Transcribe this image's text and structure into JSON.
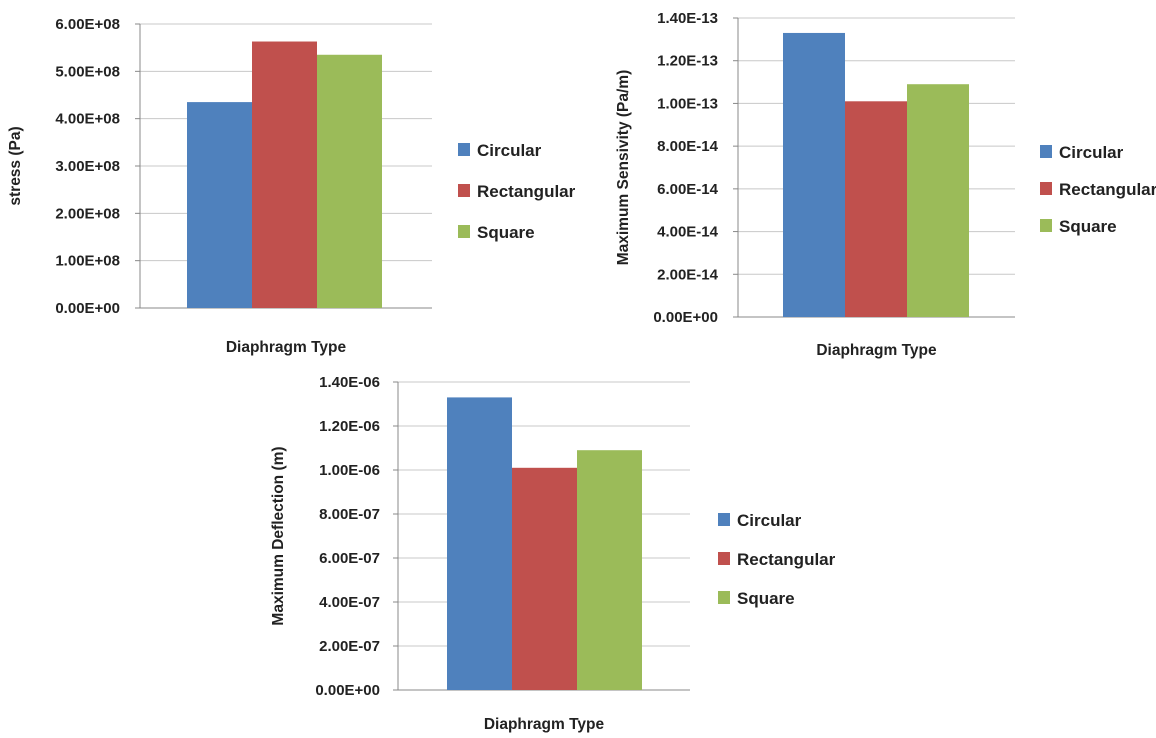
{
  "series_colors": {
    "Circular": "#4f81bd",
    "Rectangular": "#c0504d",
    "Square": "#9bbb59"
  },
  "chart_data": [
    {
      "type": "bar",
      "xlabel": "Diaphragm Type",
      "ylabel": "stress (Pa)",
      "ylim": [
        0,
        600000000
      ],
      "yticks": [
        "0.00E+00",
        "1.00E+08",
        "2.00E+08",
        "3.00E+08",
        "4.00E+08",
        "5.00E+08",
        "6.00E+08"
      ],
      "grid": true,
      "legend_position": "right",
      "series": [
        {
          "name": "Circular",
          "values": [
            435000000
          ]
        },
        {
          "name": "Rectangular",
          "values": [
            563000000
          ]
        },
        {
          "name": "Square",
          "values": [
            535000000
          ]
        }
      ]
    },
    {
      "type": "bar",
      "xlabel": "Diaphragm Type",
      "ylabel": "Maximum Sensivity (Pa/m)",
      "ylim": [
        0,
        1.4e-13
      ],
      "yticks": [
        "0.00E+00",
        "2.00E-14",
        "4.00E-14",
        "6.00E-14",
        "8.00E-14",
        "1.00E-13",
        "1.20E-13",
        "1.40E-13"
      ],
      "grid": true,
      "legend_position": "right",
      "series": [
        {
          "name": "Circular",
          "values": [
            1.33e-13
          ]
        },
        {
          "name": "Rectangular",
          "values": [
            1.01e-13
          ]
        },
        {
          "name": "Square",
          "values": [
            1.09e-13
          ]
        }
      ]
    },
    {
      "type": "bar",
      "xlabel": "Diaphragm Type",
      "ylabel": "Maximum Deflection (m)",
      "ylim": [
        0,
        1.4e-06
      ],
      "yticks": [
        "0.00E+00",
        "2.00E-07",
        "4.00E-07",
        "6.00E-07",
        "8.00E-07",
        "1.00E-06",
        "1.20E-06",
        "1.40E-06"
      ],
      "grid": true,
      "legend_position": "right",
      "series": [
        {
          "name": "Circular",
          "values": [
            1.33e-06
          ]
        },
        {
          "name": "Rectangular",
          "values": [
            1.01e-06
          ]
        },
        {
          "name": "Square",
          "values": [
            1.09e-06
          ]
        }
      ]
    }
  ]
}
